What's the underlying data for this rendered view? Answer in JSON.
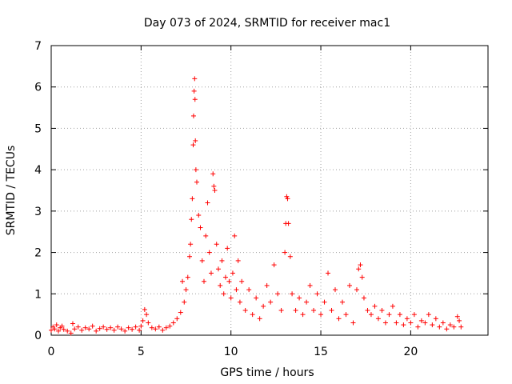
{
  "chart_data": {
    "type": "scatter",
    "title": "Day 073 of 2024, SRMTID for receiver mac1",
    "xlabel": "GPS time / hours",
    "ylabel": "SRMTID / TECUs",
    "xlim": [
      0,
      24.3
    ],
    "ylim": [
      0,
      7
    ],
    "x_ticks": [
      0,
      5,
      10,
      15,
      20
    ],
    "y_ticks": [
      0,
      1,
      2,
      3,
      4,
      5,
      6,
      7
    ],
    "grid": true,
    "marker": "+",
    "series": [
      {
        "name": "SRMTID",
        "color": "#ff0000",
        "points": [
          [
            0.0,
            0.12
          ],
          [
            0.1,
            0.2
          ],
          [
            0.2,
            0.15
          ],
          [
            0.3,
            0.25
          ],
          [
            0.4,
            0.1
          ],
          [
            0.5,
            0.18
          ],
          [
            0.6,
            0.22
          ],
          [
            0.7,
            0.14
          ],
          [
            0.9,
            0.1
          ],
          [
            1.1,
            0.05
          ],
          [
            1.2,
            0.28
          ],
          [
            1.3,
            0.15
          ],
          [
            1.5,
            0.2
          ],
          [
            1.7,
            0.12
          ],
          [
            1.9,
            0.18
          ],
          [
            2.1,
            0.15
          ],
          [
            2.3,
            0.22
          ],
          [
            2.5,
            0.1
          ],
          [
            2.7,
            0.16
          ],
          [
            2.9,
            0.2
          ],
          [
            3.1,
            0.14
          ],
          [
            3.3,
            0.18
          ],
          [
            3.5,
            0.12
          ],
          [
            3.7,
            0.2
          ],
          [
            3.9,
            0.15
          ],
          [
            4.1,
            0.1
          ],
          [
            4.3,
            0.18
          ],
          [
            4.5,
            0.14
          ],
          [
            4.7,
            0.2
          ],
          [
            4.9,
            0.12
          ],
          [
            5.0,
            0.22
          ],
          [
            5.1,
            0.35
          ],
          [
            5.2,
            0.62
          ],
          [
            5.3,
            0.5
          ],
          [
            5.4,
            0.3
          ],
          [
            5.6,
            0.18
          ],
          [
            5.8,
            0.15
          ],
          [
            6.0,
            0.2
          ],
          [
            6.2,
            0.12
          ],
          [
            6.4,
            0.18
          ],
          [
            6.6,
            0.22
          ],
          [
            6.8,
            0.3
          ],
          [
            7.0,
            0.4
          ],
          [
            7.2,
            0.55
          ],
          [
            7.3,
            1.3
          ],
          [
            7.4,
            0.8
          ],
          [
            7.5,
            1.1
          ],
          [
            7.6,
            1.4
          ],
          [
            7.7,
            1.9
          ],
          [
            7.75,
            2.2
          ],
          [
            7.8,
            2.8
          ],
          [
            7.85,
            3.3
          ],
          [
            7.9,
            4.6
          ],
          [
            7.92,
            5.3
          ],
          [
            7.95,
            5.9
          ],
          [
            7.98,
            6.2
          ],
          [
            8.0,
            5.7
          ],
          [
            8.02,
            4.7
          ],
          [
            8.05,
            4.0
          ],
          [
            8.1,
            3.7
          ],
          [
            8.2,
            2.9
          ],
          [
            8.3,
            2.6
          ],
          [
            8.4,
            1.8
          ],
          [
            8.5,
            1.3
          ],
          [
            8.6,
            2.4
          ],
          [
            8.7,
            3.2
          ],
          [
            8.8,
            2.0
          ],
          [
            8.9,
            1.5
          ],
          [
            9.0,
            3.9
          ],
          [
            9.05,
            3.6
          ],
          [
            9.1,
            3.5
          ],
          [
            9.2,
            2.2
          ],
          [
            9.3,
            1.6
          ],
          [
            9.4,
            1.2
          ],
          [
            9.5,
            1.8
          ],
          [
            9.6,
            1.0
          ],
          [
            9.7,
            1.4
          ],
          [
            9.8,
            2.1
          ],
          [
            9.9,
            1.3
          ],
          [
            10.0,
            0.9
          ],
          [
            10.1,
            1.5
          ],
          [
            10.2,
            2.4
          ],
          [
            10.3,
            1.1
          ],
          [
            10.4,
            1.8
          ],
          [
            10.5,
            0.8
          ],
          [
            10.6,
            1.3
          ],
          [
            10.8,
            0.6
          ],
          [
            11.0,
            1.1
          ],
          [
            11.2,
            0.5
          ],
          [
            11.4,
            0.9
          ],
          [
            11.6,
            0.4
          ],
          [
            11.8,
            0.7
          ],
          [
            12.0,
            1.2
          ],
          [
            12.2,
            0.8
          ],
          [
            12.4,
            1.7
          ],
          [
            12.6,
            1.0
          ],
          [
            12.8,
            0.6
          ],
          [
            13.0,
            2.0
          ],
          [
            13.05,
            2.7
          ],
          [
            13.1,
            3.35
          ],
          [
            13.15,
            3.3
          ],
          [
            13.2,
            2.7
          ],
          [
            13.3,
            1.9
          ],
          [
            13.4,
            1.0
          ],
          [
            13.6,
            0.6
          ],
          [
            13.8,
            0.9
          ],
          [
            14.0,
            0.5
          ],
          [
            14.2,
            0.8
          ],
          [
            14.4,
            1.2
          ],
          [
            14.6,
            0.6
          ],
          [
            14.8,
            1.0
          ],
          [
            15.0,
            0.5
          ],
          [
            15.2,
            0.8
          ],
          [
            15.4,
            1.5
          ],
          [
            15.6,
            0.6
          ],
          [
            15.8,
            1.1
          ],
          [
            16.0,
            0.4
          ],
          [
            16.2,
            0.8
          ],
          [
            16.4,
            0.5
          ],
          [
            16.6,
            1.2
          ],
          [
            16.8,
            0.3
          ],
          [
            17.0,
            1.1
          ],
          [
            17.1,
            1.6
          ],
          [
            17.2,
            1.7
          ],
          [
            17.3,
            1.4
          ],
          [
            17.4,
            0.9
          ],
          [
            17.6,
            0.6
          ],
          [
            17.8,
            0.5
          ],
          [
            18.0,
            0.7
          ],
          [
            18.2,
            0.4
          ],
          [
            18.4,
            0.6
          ],
          [
            18.6,
            0.3
          ],
          [
            18.8,
            0.5
          ],
          [
            19.0,
            0.7
          ],
          [
            19.2,
            0.3
          ],
          [
            19.4,
            0.5
          ],
          [
            19.6,
            0.25
          ],
          [
            19.8,
            0.4
          ],
          [
            20.0,
            0.3
          ],
          [
            20.2,
            0.5
          ],
          [
            20.4,
            0.2
          ],
          [
            20.6,
            0.35
          ],
          [
            20.8,
            0.3
          ],
          [
            21.0,
            0.5
          ],
          [
            21.2,
            0.25
          ],
          [
            21.4,
            0.4
          ],
          [
            21.6,
            0.2
          ],
          [
            21.8,
            0.3
          ],
          [
            22.0,
            0.15
          ],
          [
            22.2,
            0.25
          ],
          [
            22.4,
            0.2
          ],
          [
            22.6,
            0.45
          ],
          [
            22.7,
            0.35
          ],
          [
            22.8,
            0.2
          ]
        ]
      }
    ]
  }
}
